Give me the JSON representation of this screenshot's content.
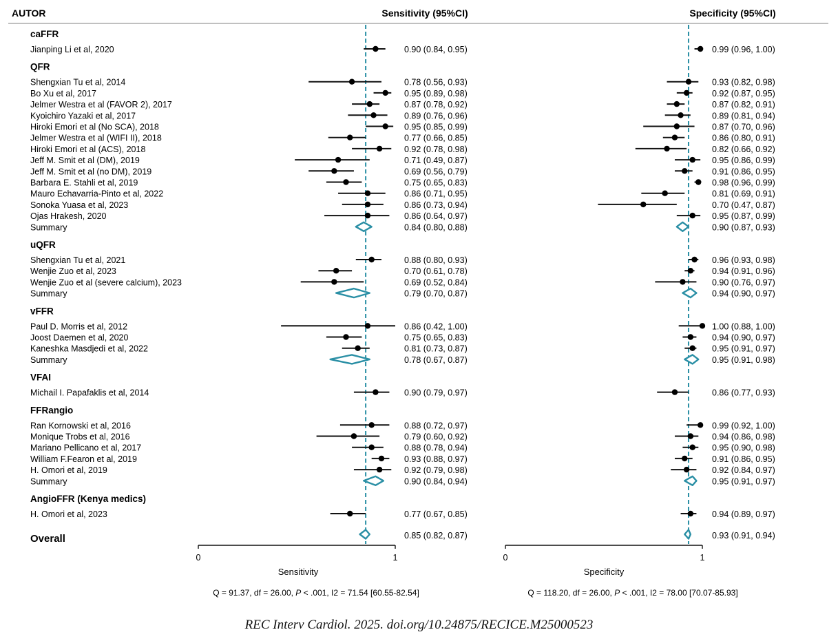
{
  "header": {
    "author_label": "AUTOR",
    "sens_header": "Sensitivity (95%CI)",
    "spec_header": "Specificity (95%CI)"
  },
  "colors": {
    "reference_line": "#2a8fa5",
    "summary_diamond": "#2a8fa5",
    "point": "#000000"
  },
  "footer": {
    "sens_stats_pre": "Q = 91.37, df = 26.00, ",
    "sens_stats_post": " < .001, I2 = 71.54 [60.55-82.54]",
    "spec_stats_pre": "Q = 118.20, df = 26.00, ",
    "spec_stats_post": " < .001, I2 = 78.00 [70.07-85.93]",
    "p_symbol": "P",
    "citation": "REC Interv Cardiol. 2025. doi.org/10.24875/RECICE.M25000523"
  },
  "chart_data": {
    "type": "forest",
    "panels": [
      {
        "key": "sens",
        "xlabel": "Sensitivity",
        "xlim": [
          0,
          1
        ],
        "ticks": [
          "0",
          "1"
        ],
        "reference": 0.85
      },
      {
        "key": "spec",
        "xlabel": "Specificity",
        "xlim": [
          0,
          1
        ],
        "ticks": [
          "0",
          "1"
        ],
        "reference": 0.93
      }
    ],
    "groups": [
      {
        "name": "caFFR",
        "rows": [
          {
            "label": "Jianping Li et al, 2020",
            "sens": [
              0.9,
              0.84,
              0.95
            ],
            "sens_text": "0.90 (0.84, 0.95)",
            "spec": [
              0.99,
              0.96,
              1.0
            ],
            "spec_text": "0.99 (0.96, 1.00)"
          }
        ]
      },
      {
        "name": "QFR",
        "rows": [
          {
            "label": "Shengxian Tu et al, 2014",
            "sens": [
              0.78,
              0.56,
              0.93
            ],
            "sens_text": "0.78 (0.56, 0.93)",
            "spec": [
              0.93,
              0.82,
              0.98
            ],
            "spec_text": "0.93 (0.82, 0.98)"
          },
          {
            "label": "Bo Xu et al, 2017",
            "sens": [
              0.95,
              0.89,
              0.98
            ],
            "sens_text": "0.95 (0.89, 0.98)",
            "spec": [
              0.92,
              0.87,
              0.95
            ],
            "spec_text": "0.92 (0.87, 0.95)"
          },
          {
            "label": "Jelmer Westra et al (FAVOR 2), 2017",
            "sens": [
              0.87,
              0.78,
              0.92
            ],
            "sens_text": "0.87 (0.78, 0.92)",
            "spec": [
              0.87,
              0.82,
              0.91
            ],
            "spec_text": "0.87 (0.82, 0.91)"
          },
          {
            "label": "Kyoichiro Yazaki et al, 2017",
            "sens": [
              0.89,
              0.76,
              0.96
            ],
            "sens_text": "0.89 (0.76, 0.96)",
            "spec": [
              0.89,
              0.81,
              0.94
            ],
            "spec_text": "0.89 (0.81, 0.94)"
          },
          {
            "label": "Hiroki Emori et al (No SCA), 2018",
            "sens": [
              0.95,
              0.85,
              0.99
            ],
            "sens_text": "0.95 (0.85, 0.99)",
            "spec": [
              0.87,
              0.7,
              0.96
            ],
            "spec_text": "0.87 (0.70, 0.96)"
          },
          {
            "label": "Jelmer Westra et al (WIFI II), 2018",
            "sens": [
              0.77,
              0.66,
              0.85
            ],
            "sens_text": "0.77 (0.66, 0.85)",
            "spec": [
              0.86,
              0.8,
              0.91
            ],
            "spec_text": "0.86 (0.80, 0.91)"
          },
          {
            "label": "Hiroki Emori et al (ACS), 2018",
            "sens": [
              0.92,
              0.78,
              0.98
            ],
            "sens_text": "0.92 (0.78, 0.98)",
            "spec": [
              0.82,
              0.66,
              0.92
            ],
            "spec_text": "0.82 (0.66, 0.92)"
          },
          {
            "label": "Jeff M. Smit et al (DM), 2019",
            "sens": [
              0.71,
              0.49,
              0.87
            ],
            "sens_text": "0.71 (0.49, 0.87)",
            "spec": [
              0.95,
              0.86,
              0.99
            ],
            "spec_text": "0.95 (0.86, 0.99)"
          },
          {
            "label": "Jeff M. Smit et al (no DM), 2019",
            "sens": [
              0.69,
              0.56,
              0.79
            ],
            "sens_text": "0.69 (0.56, 0.79)",
            "spec": [
              0.91,
              0.86,
              0.95
            ],
            "spec_text": "0.91 (0.86, 0.95)"
          },
          {
            "label": "Barbara E. Stahli et al, 2019",
            "sens": [
              0.75,
              0.65,
              0.83
            ],
            "sens_text": "0.75 (0.65, 0.83)",
            "spec": [
              0.98,
              0.96,
              0.99
            ],
            "spec_text": "0.98 (0.96, 0.99)"
          },
          {
            "label": "Mauro Echavarria-Pinto et al, 2022",
            "sens": [
              0.86,
              0.71,
              0.95
            ],
            "sens_text": "0.86 (0.71, 0.95)",
            "spec": [
              0.81,
              0.69,
              0.91
            ],
            "spec_text": "0.81 (0.69, 0.91)"
          },
          {
            "label": "Sonoka Yuasa et al, 2023",
            "sens": [
              0.86,
              0.73,
              0.94
            ],
            "sens_text": "0.86 (0.73, 0.94)",
            "spec": [
              0.7,
              0.47,
              0.87
            ],
            "spec_text": "0.70 (0.47, 0.87)"
          },
          {
            "label": "Ojas Hrakesh, 2020",
            "sens": [
              0.86,
              0.64,
              0.97
            ],
            "sens_text": "0.86 (0.64, 0.97)",
            "spec": [
              0.95,
              0.87,
              0.99
            ],
            "spec_text": "0.95 (0.87, 0.99)"
          },
          {
            "label": "Summary",
            "summary": true,
            "sens": [
              0.84,
              0.8,
              0.88
            ],
            "sens_text": "0.84 (0.80, 0.88)",
            "spec": [
              0.9,
              0.87,
              0.93
            ],
            "spec_text": "0.90 (0.87, 0.93)"
          }
        ]
      },
      {
        "name": "uQFR",
        "rows": [
          {
            "label": "Shengxian Tu et al, 2021",
            "sens": [
              0.88,
              0.8,
              0.93
            ],
            "sens_text": "0.88 (0.80, 0.93)",
            "spec": [
              0.96,
              0.93,
              0.98
            ],
            "spec_text": "0.96 (0.93, 0.98)"
          },
          {
            "label": "Wenjie Zuo et al, 2023",
            "sens": [
              0.7,
              0.61,
              0.78
            ],
            "sens_text": "0.70 (0.61, 0.78)",
            "spec": [
              0.94,
              0.91,
              0.96
            ],
            "spec_text": "0.94 (0.91, 0.96)"
          },
          {
            "label": "Wenjie Zuo et al (severe calcium), 2023",
            "sens": [
              0.69,
              0.52,
              0.84
            ],
            "sens_text": "0.69 (0.52, 0.84)",
            "spec": [
              0.9,
              0.76,
              0.97
            ],
            "spec_text": "0.90 (0.76, 0.97)"
          },
          {
            "label": "Summary",
            "summary": true,
            "sens": [
              0.79,
              0.7,
              0.87
            ],
            "sens_text": "0.79 (0.70, 0.87)",
            "spec": [
              0.94,
              0.9,
              0.97
            ],
            "spec_text": "0.94 (0.90, 0.97)"
          }
        ]
      },
      {
        "name": "vFFR",
        "rows": [
          {
            "label": "Paul D. Morris et al, 2012",
            "sens": [
              0.86,
              0.42,
              1.0
            ],
            "sens_text": "0.86 (0.42, 1.00)",
            "spec": [
              1.0,
              0.88,
              1.0
            ],
            "spec_text": "1.00 (0.88, 1.00)"
          },
          {
            "label": "Joost Daemen et al, 2020",
            "sens": [
              0.75,
              0.65,
              0.83
            ],
            "sens_text": "0.75 (0.65, 0.83)",
            "spec": [
              0.94,
              0.9,
              0.97
            ],
            "spec_text": "0.94 (0.90, 0.97)"
          },
          {
            "label": "Kaneshka Masdjedi et al, 2022",
            "sens": [
              0.81,
              0.73,
              0.87
            ],
            "sens_text": "0.81 (0.73, 0.87)",
            "spec": [
              0.95,
              0.91,
              0.97
            ],
            "spec_text": "0.95 (0.91, 0.97)"
          },
          {
            "label": "Summary",
            "summary": true,
            "sens": [
              0.78,
              0.67,
              0.87
            ],
            "sens_text": "0.78 (0.67, 0.87)",
            "spec": [
              0.95,
              0.91,
              0.98
            ],
            "spec_text": "0.95 (0.91, 0.98)"
          }
        ]
      },
      {
        "name": "VFAI",
        "rows": [
          {
            "label": "Michail I. Papafaklis et al, 2014",
            "sens": [
              0.9,
              0.79,
              0.97
            ],
            "sens_text": "0.90 (0.79, 0.97)",
            "spec": [
              0.86,
              0.77,
              0.93
            ],
            "spec_text": "0.86 (0.77, 0.93)"
          }
        ]
      },
      {
        "name": "FFRangio",
        "rows": [
          {
            "label": "Ran Kornowski et al, 2016",
            "sens": [
              0.88,
              0.72,
              0.97
            ],
            "sens_text": "0.88 (0.72, 0.97)",
            "spec": [
              0.99,
              0.92,
              1.0
            ],
            "spec_text": "0.99 (0.92, 1.00)"
          },
          {
            "label": "Monique Trobs et al, 2016",
            "sens": [
              0.79,
              0.6,
              0.92
            ],
            "sens_text": "0.79 (0.60, 0.92)",
            "spec": [
              0.94,
              0.86,
              0.98
            ],
            "spec_text": "0.94 (0.86, 0.98)"
          },
          {
            "label": "Mariano Pellicano et al, 2017",
            "sens": [
              0.88,
              0.78,
              0.94
            ],
            "sens_text": "0.88 (0.78, 0.94)",
            "spec": [
              0.95,
              0.9,
              0.98
            ],
            "spec_text": "0.95 (0.90, 0.98)"
          },
          {
            "label": "William F.Fearon et al, 2019",
            "sens": [
              0.93,
              0.88,
              0.97
            ],
            "sens_text": "0.93 (0.88, 0.97)",
            "spec": [
              0.91,
              0.86,
              0.95
            ],
            "spec_text": "0.91 (0.86, 0.95)"
          },
          {
            "label": "H. Omori et al, 2019",
            "sens": [
              0.92,
              0.79,
              0.98
            ],
            "sens_text": "0.92 (0.79, 0.98)",
            "spec": [
              0.92,
              0.84,
              0.97
            ],
            "spec_text": "0.92 (0.84, 0.97)"
          },
          {
            "label": "Summary",
            "summary": true,
            "sens": [
              0.9,
              0.84,
              0.94
            ],
            "sens_text": "0.90 (0.84, 0.94)",
            "spec": [
              0.95,
              0.91,
              0.97
            ],
            "spec_text": "0.95 (0.91, 0.97)"
          }
        ]
      },
      {
        "name": "AngioFFR (Kenya medics)",
        "rows": [
          {
            "label": "H. Omori et al, 2023",
            "sens": [
              0.77,
              0.67,
              0.85
            ],
            "sens_text": "0.77 (0.67, 0.85)",
            "spec": [
              0.94,
              0.89,
              0.97
            ],
            "spec_text": "0.94 (0.89, 0.97)"
          }
        ]
      }
    ],
    "overall": {
      "label": "Overall",
      "sens": [
        0.85,
        0.82,
        0.87
      ],
      "sens_text": "0.85 (0.82, 0.87)",
      "spec": [
        0.93,
        0.91,
        0.94
      ],
      "spec_text": "0.93 (0.91, 0.94)"
    }
  }
}
